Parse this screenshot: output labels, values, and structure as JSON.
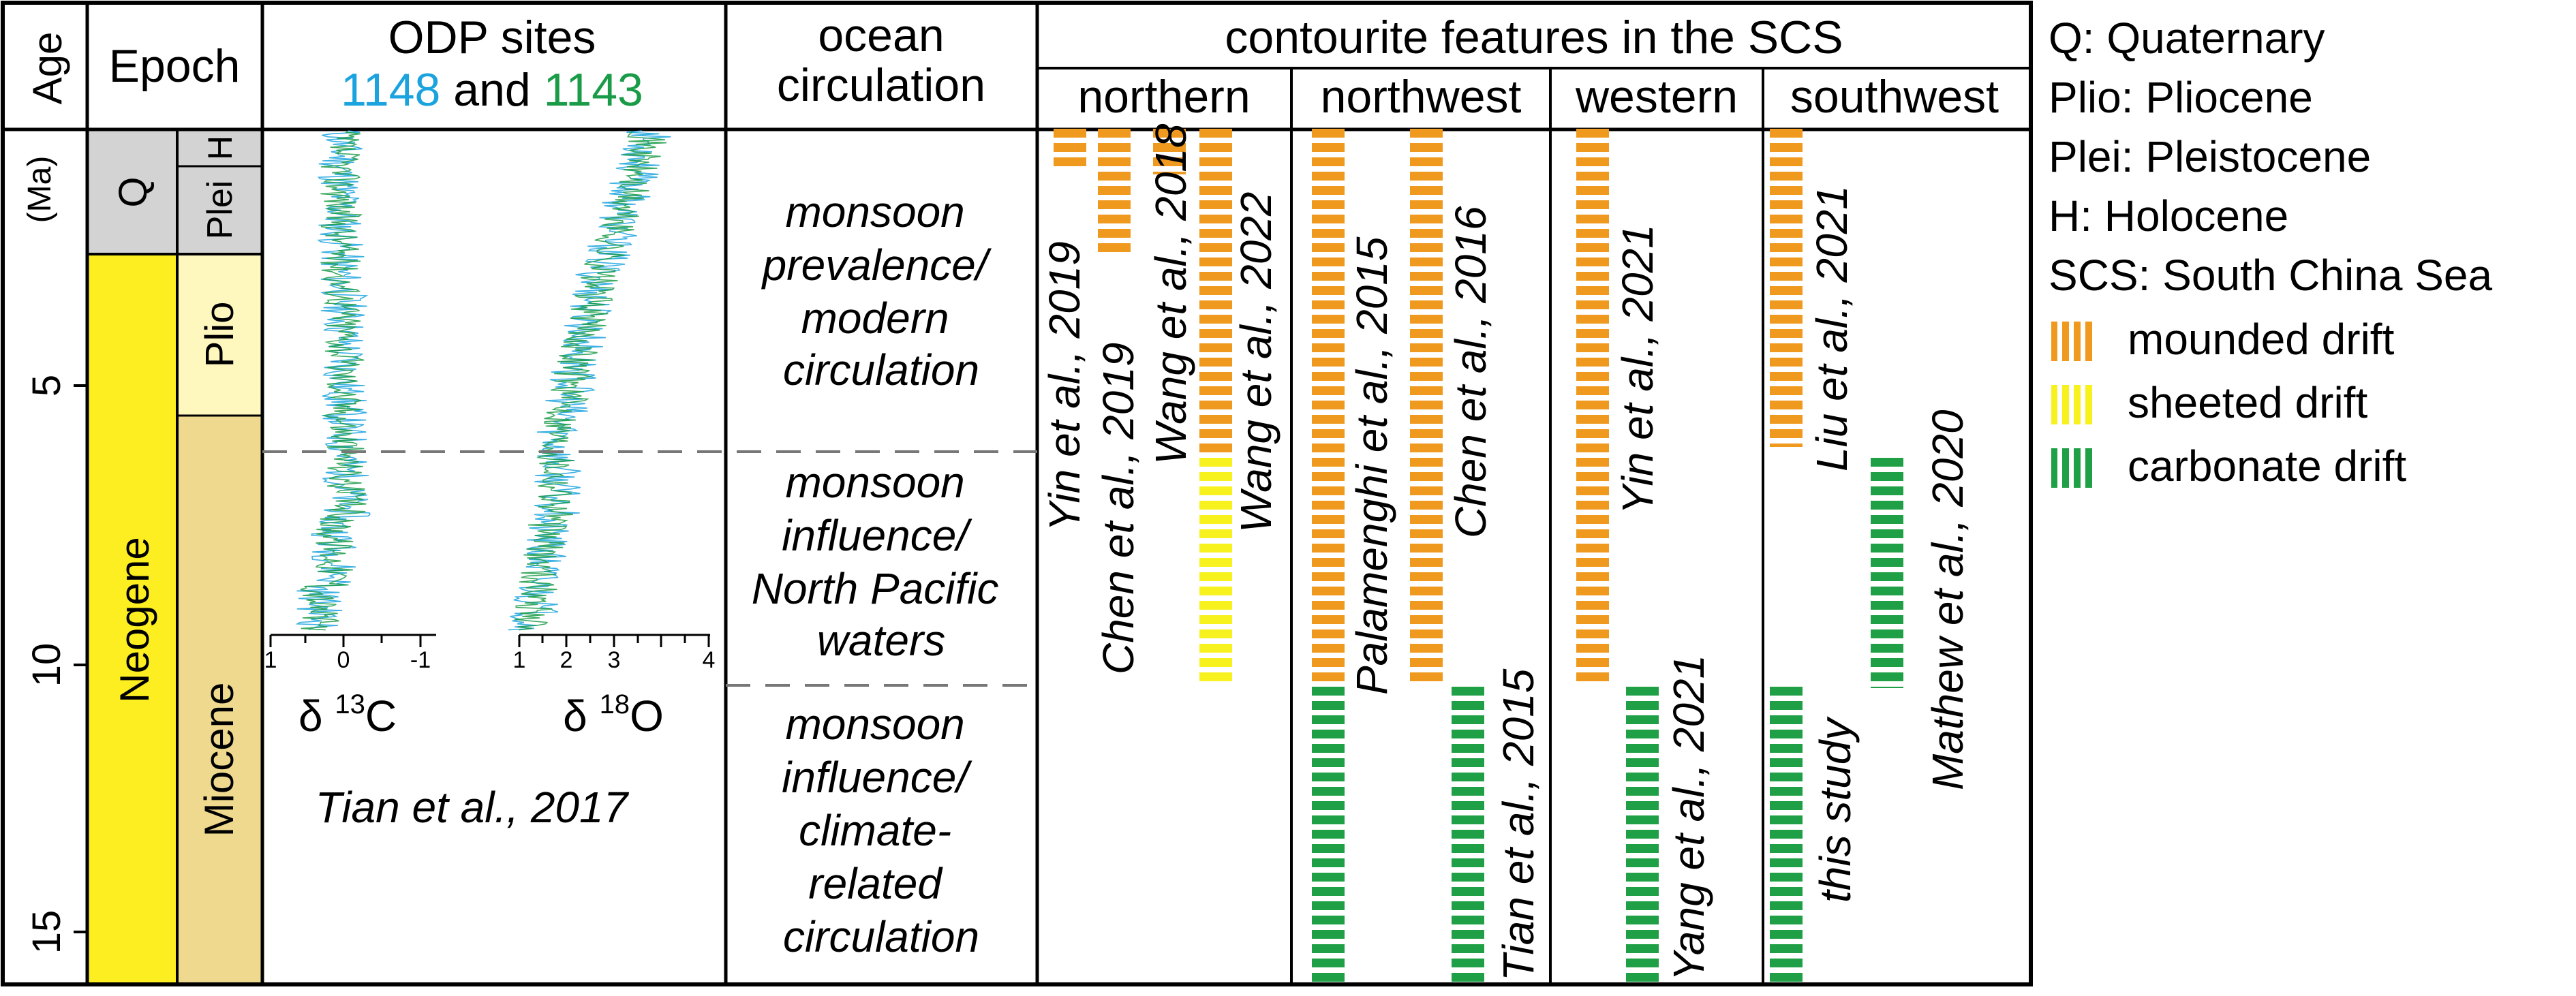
{
  "header": {
    "age_label": "Age",
    "age_unit": "(Ma)",
    "epoch_label": "Epoch",
    "odp_title_line1": "ODP sites",
    "odp_site_a": "1148",
    "odp_and": "and",
    "odp_site_b": "1143",
    "ocean_title_line1": "ocean",
    "ocean_title_line2": "circulation",
    "contourite_title": "contourite features in the SCS",
    "regions": [
      "northern",
      "northwest",
      "western",
      "southwest"
    ]
  },
  "age_ticks": [
    "5",
    "10",
    "15"
  ],
  "periods": {
    "q": "Q",
    "neogene": "Neogene"
  },
  "epochs": {
    "h": "H",
    "plei": "Plei",
    "plio": "Plio",
    "miocene": "Miocene"
  },
  "isotopes": {
    "c13_ticks": [
      "1",
      "0",
      "-1"
    ],
    "o18_ticks": [
      "1",
      "2",
      "3",
      "4"
    ],
    "c13_label_base": "δ ",
    "c13_label_sup": "13",
    "c13_label_elem": "C",
    "o18_label_base": "δ ",
    "o18_label_sup": "18",
    "o18_label_elem": "O",
    "source": "Tian et al., 2017"
  },
  "circulation_phases": [
    [
      "monsoon",
      "prevalence/",
      "modern",
      "circulation"
    ],
    [
      "monsoon",
      "influence/",
      "North Pacific",
      "waters"
    ],
    [
      "monsoon",
      "influence/",
      "climate-",
      "related",
      "circulation"
    ]
  ],
  "references": {
    "northern": [
      "Yin et al., 2019",
      "Chen et al., 2019",
      "Wang et al., 2018",
      "Wang et al., 2022"
    ],
    "northwest": [
      "Palamenghi et al., 2015",
      "Chen et al., 2016",
      "Tian et al., 2015"
    ],
    "western": [
      "Yin et al., 2021",
      "Yang et al., 2021"
    ],
    "southwest": [
      "Liu et al., 2021",
      "this study",
      "Mathew et al., 2020"
    ]
  },
  "legend": {
    "abbreviations": [
      "Q: Quaternary",
      "Plio: Pliocene",
      "Plei: Pleistocene",
      "H: Holocene",
      "SCS: South China Sea"
    ],
    "drift_types": [
      {
        "label": "mounded drift",
        "color": "#EF9A1F"
      },
      {
        "label": "sheeted drift",
        "color": "#F7F21E"
      },
      {
        "label": "carbonate drift",
        "color": "#1FA046"
      }
    ]
  },
  "colors": {
    "site_1148": "#1AA3DE",
    "site_1143": "#1A9B47",
    "quaternary": "#D3D3D3",
    "neogene": "#FCEE21",
    "pliocene": "#FFF8BE",
    "miocene": "#EED98E"
  }
}
